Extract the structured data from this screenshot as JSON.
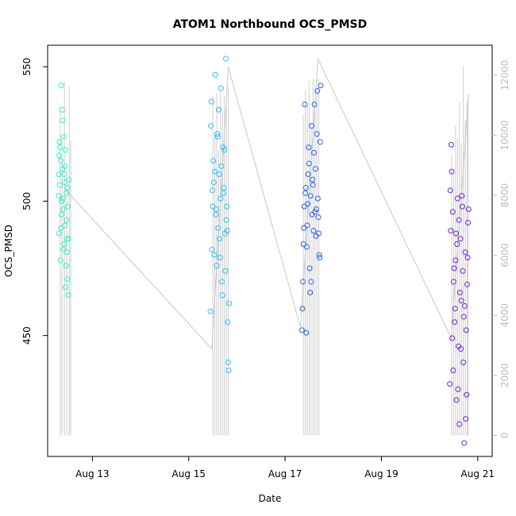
{
  "chart_data": {
    "type": "scatter",
    "title": "ATOM1 Northbound OCS_PMSD",
    "xlabel": "Date",
    "ylabel": "OCS_PMSD",
    "x_unit": "days since Aug 12",
    "xlim": [
      0.07,
      9.3
    ],
    "ylim": [
      405,
      558
    ],
    "y2lim": [
      -700,
      13000
    ],
    "x_ticks": [
      {
        "value": 1,
        "label": "Aug 13"
      },
      {
        "value": 3,
        "label": "Aug 15"
      },
      {
        "value": 5,
        "label": "Aug 17"
      },
      {
        "value": 7,
        "label": "Aug 19"
      },
      {
        "value": 9,
        "label": "Aug 21"
      }
    ],
    "y_ticks": [
      {
        "value": 450,
        "label": "450"
      },
      {
        "value": 500,
        "label": "500"
      },
      {
        "value": 550,
        "label": "550"
      }
    ],
    "y2_ticks": [
      {
        "value": 0,
        "label": "0"
      },
      {
        "value": 2000,
        "label": "2000"
      },
      {
        "value": 4000,
        "label": "4000"
      },
      {
        "value": 6000,
        "label": "6000"
      },
      {
        "value": 8000,
        "label": "8000"
      },
      {
        "value": 10000,
        "label": "10000"
      },
      {
        "value": 12000,
        "label": "12000"
      }
    ],
    "series": [
      {
        "color": "#2ef2c4",
        "x": [
          0.3,
          0.31,
          0.32,
          0.33,
          0.34,
          0.35,
          0.36,
          0.37,
          0.38,
          0.39,
          0.4,
          0.41,
          0.42,
          0.43,
          0.44,
          0.45,
          0.46,
          0.47,
          0.48,
          0.49,
          0.5,
          0.51,
          0.3,
          0.32,
          0.34,
          0.36,
          0.38,
          0.4,
          0.42,
          0.44,
          0.46,
          0.48,
          0.5,
          0.31,
          0.35,
          0.39,
          0.43,
          0.47
        ],
        "y": [
          510,
          488,
          506,
          520,
          478,
          543,
          500,
          534,
          512,
          497,
          524,
          484,
          507,
          491,
          519,
          476,
          503,
          486,
          471,
          498,
          465,
          508,
          502,
          522,
          515,
          495,
          530,
          482,
          510,
          468,
          493,
          505,
          486,
          517,
          490,
          501,
          513,
          481
        ]
      },
      {
        "color": "#29c3f0",
        "x": [
          3.45,
          3.47,
          3.49,
          3.51,
          3.53,
          3.55,
          3.57,
          3.59,
          3.61,
          3.63,
          3.65,
          3.67,
          3.69,
          3.71,
          3.73,
          3.75,
          3.77,
          3.79,
          3.81,
          3.83,
          3.46,
          3.5,
          3.54,
          3.58,
          3.62,
          3.66,
          3.7,
          3.74,
          3.78,
          3.82,
          3.48,
          3.52,
          3.56,
          3.6,
          3.64,
          3.68,
          3.72,
          3.76,
          3.8,
          3.84
        ],
        "y": [
          459,
          537,
          504,
          515,
          480,
          547,
          497,
          525,
          490,
          510,
          479,
          542,
          470,
          520,
          505,
          488,
          553,
          498,
          455,
          437,
          528,
          498,
          511,
          476,
          534,
          501,
          465,
          519,
          493,
          440,
          482,
          507,
          495,
          524,
          486,
          513,
          503,
          474,
          489,
          462
        ]
      },
      {
        "color": "#2a64ee",
        "x": [
          5.35,
          5.37,
          5.39,
          5.41,
          5.43,
          5.45,
          5.47,
          5.49,
          5.51,
          5.53,
          5.55,
          5.57,
          5.59,
          5.61,
          5.63,
          5.65,
          5.67,
          5.69,
          5.71,
          5.73,
          5.36,
          5.4,
          5.44,
          5.48,
          5.52,
          5.56,
          5.6,
          5.64,
          5.68,
          5.72,
          5.38,
          5.42,
          5.46,
          5.5,
          5.54,
          5.58,
          5.62,
          5.66,
          5.7,
          5.74
        ],
        "y": [
          452,
          470,
          490,
          536,
          505,
          483,
          499,
          520,
          475,
          502,
          528,
          508,
          489,
          536,
          512,
          497,
          541,
          494,
          480,
          522,
          460,
          498,
          451,
          510,
          466,
          495,
          518,
          487,
          501,
          479,
          484,
          503,
          491,
          514,
          470,
          506,
          496,
          525,
          488,
          543
        ]
      },
      {
        "color": "#7a1fe6",
        "x": [
          8.42,
          8.44,
          8.46,
          8.48,
          8.5,
          8.52,
          8.54,
          8.56,
          8.58,
          8.6,
          8.62,
          8.64,
          8.66,
          8.68,
          8.7,
          8.72,
          8.74,
          8.76,
          8.78,
          8.8,
          8.43,
          8.47,
          8.51,
          8.55,
          8.59,
          8.63,
          8.67,
          8.71,
          8.75,
          8.79,
          8.45,
          8.49,
          8.53,
          8.57,
          8.61,
          8.65,
          8.69,
          8.73,
          8.77,
          8.81
        ],
        "y": [
          432,
          489,
          511,
          496,
          470,
          455,
          478,
          426,
          501,
          446,
          417,
          486,
          463,
          498,
          440,
          410,
          481,
          452,
          469,
          492,
          504,
          449,
          475,
          488,
          430,
          466,
          502,
          457,
          419,
          479,
          521,
          437,
          460,
          484,
          493,
          445,
          474,
          461,
          428,
          497
        ]
      }
    ],
    "trend_line": {
      "x": [
        0.4,
        3.48,
        3.82,
        5.32,
        5.68,
        8.45,
        8.81
      ],
      "y": [
        505,
        445,
        550,
        453,
        553,
        449,
        540
      ]
    },
    "background_bars": {
      "axis": "right",
      "color": "#cfcfcf",
      "x": [
        0.33,
        0.37,
        0.42,
        0.47,
        0.52,
        0.55,
        3.5,
        3.54,
        3.58,
        3.62,
        3.66,
        3.7,
        3.74,
        3.78,
        3.82,
        5.38,
        5.42,
        5.46,
        5.5,
        5.54,
        5.58,
        5.62,
        5.66,
        5.7,
        8.46,
        8.5,
        8.54,
        8.58,
        8.62,
        8.66,
        8.7,
        8.74,
        8.78,
        8.8
      ],
      "top": [
        11000,
        9200,
        11800,
        8600,
        11600,
        9800,
        11300,
        10100,
        11400,
        9500,
        11500,
        10800,
        11300,
        10900,
        11600,
        10700,
        11500,
        11000,
        11800,
        10400,
        11900,
        11200,
        11500,
        11900,
        9400,
        8700,
        10300,
        9900,
        11100,
        9700,
        12300,
        10500,
        11100,
        11200
      ]
    }
  }
}
